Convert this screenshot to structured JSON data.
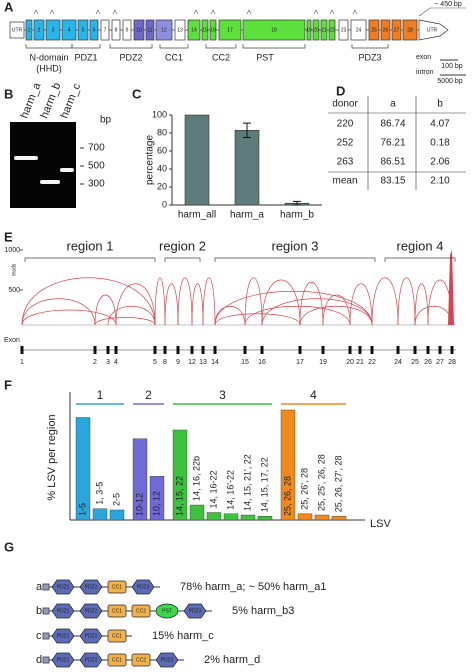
{
  "panel_a": {
    "letter": "A",
    "utr_left": "UTR",
    "exons": [
      "1",
      "2",
      "3",
      "4",
      "5",
      "6",
      "7",
      "8",
      "9",
      "10",
      "11",
      "12",
      "13",
      "14",
      "15",
      "16",
      "17",
      "18",
      "19",
      "20",
      "21",
      "22",
      "23",
      "24",
      "25",
      "26",
      "27",
      "28"
    ],
    "exon_colors": [
      "#29b5e8",
      "#29b5e8",
      "#29b5e8",
      "#29b5e8",
      "#29b5e8",
      "#29b5e8",
      "#ffffff",
      "#ffffff",
      "#ffffff",
      "#6f68c8",
      "#6f68c8",
      "#8a8fe0",
      "#ffffff",
      "#5ee03c",
      "#5ee03c",
      "#5ee03c",
      "#5ee03c",
      "#5ee03c",
      "#5ee03c",
      "#5ee03c",
      "#5ee03c",
      "#5ee03c",
      "#ffffff",
      "#ffffff",
      "#f07d22",
      "#f07d22",
      "#f07d22",
      "#f07d22"
    ],
    "utr_right": "UTR",
    "utr_note": "~ 450 bp",
    "domains": [
      {
        "label": "N-domain",
        "sublabel": "(HHD)"
      },
      {
        "label": "PDZ1"
      },
      {
        "label": "PDZ2"
      },
      {
        "label": "CC1"
      },
      {
        "label": "CC2"
      },
      {
        "label": "PST"
      },
      {
        "label": "PDZ3"
      }
    ],
    "legend": {
      "exon": "exon",
      "intron": "intron",
      "exon_scale": "100 bp",
      "intron_scale": "5000 bp"
    }
  },
  "panel_b": {
    "letter": "B",
    "lanes": [
      "harm_a",
      "harm_b",
      "harm_c"
    ],
    "unit": "bp",
    "markers": [
      700,
      500,
      300
    ]
  },
  "chart_data": [
    {
      "type": "bar",
      "panel": "C",
      "ylabel": "percentage",
      "categories": [
        "harm_all",
        "harm_a",
        "harm_b"
      ],
      "values": [
        100,
        83,
        2
      ],
      "errors": [
        null,
        8,
        2
      ],
      "color": "#5f7a7a",
      "ylim": [
        0,
        100
      ],
      "yticks": [
        0,
        20,
        40,
        60,
        80,
        100
      ]
    },
    {
      "type": "bar",
      "panel": "F",
      "ylabel": "% LSV per region",
      "xlabel": "LSV",
      "ylim": [
        0,
        100
      ],
      "series": [
        {
          "name": "1",
          "color": "#2aa6de",
          "categories": [
            "1-5",
            "1, 3-5",
            "2-5"
          ],
          "values": [
            82,
            9,
            8
          ]
        },
        {
          "name": "2",
          "color": "#6f6ad6",
          "categories": [
            "10-12",
            "10, 12"
          ],
          "values": [
            65,
            35
          ]
        },
        {
          "name": "3",
          "color": "#3cc23c",
          "categories": [
            "14, 15, 22",
            "14, 16, 22b",
            "14, 16-22",
            "14, 16'-22",
            "14, 15, 21', 22",
            "14, 15, 17, 22"
          ],
          "values": [
            72,
            12,
            6,
            5,
            4,
            3
          ]
        },
        {
          "name": "4",
          "color": "#f08a1c",
          "categories": [
            "25, 26, 28",
            "25, 26', 28",
            "25, 25', 26, 28",
            "25, 26, 27', 28"
          ],
          "values": [
            88,
            5,
            4,
            3
          ]
        }
      ]
    }
  ],
  "table_d": {
    "letter": "D",
    "header": [
      "donor",
      "a",
      "b"
    ],
    "rows": [
      [
        "220",
        "86.74",
        "4.07"
      ],
      [
        "252",
        "76.21",
        "0.18"
      ],
      [
        "263",
        "86.51",
        "2.06"
      ],
      [
        "mean",
        "83.15",
        "2.10"
      ]
    ]
  },
  "panel_e": {
    "letter": "E",
    "ylabel": "reads",
    "ylim": [
      0,
      1000
    ],
    "yticks": [
      500,
      1000
    ],
    "track_label": "Exon",
    "exons": [
      "1",
      "2",
      "3",
      "4",
      "5",
      "8",
      "9",
      "12",
      "13",
      "14",
      "15",
      "16",
      "17",
      "19",
      "20",
      "21",
      "22",
      "24",
      "25",
      "26",
      "27",
      "28"
    ],
    "regions": [
      {
        "label": "region 1",
        "color": "#29b5e8"
      },
      {
        "label": "region 2",
        "color": "#6a6ad0"
      },
      {
        "label": "region 3",
        "color": "#3cc83c"
      },
      {
        "label": "region 4",
        "color": "#f07d22"
      }
    ]
  },
  "panel_g": {
    "letter": "G",
    "rows": [
      {
        "letter": "a",
        "label": "78% harm_a; ~ 50% harm_a1",
        "domains": [
          {
            "label": "PDZ1",
            "shape": "hexagon",
            "color": "#5b6bb5"
          },
          {
            "label": "PDZ2",
            "shape": "hexagon",
            "color": "#5b6bb5"
          },
          {
            "label": "CC1",
            "shape": "rounded",
            "color": "#f2b24a"
          },
          {
            "label": "PDZ3",
            "shape": "hexagon",
            "color": "#5b6bb5"
          }
        ]
      },
      {
        "letter": "b",
        "label": "5% harm_b3",
        "domains": [
          {
            "label": "PDZ1",
            "shape": "hexagon",
            "color": "#5b6bb5"
          },
          {
            "label": "PDZ2",
            "shape": "hexagon",
            "color": "#5b6bb5"
          },
          {
            "label": "CC1",
            "shape": "rounded",
            "color": "#f2b24a"
          },
          {
            "label": "CC2",
            "shape": "rounded",
            "color": "#f2b24a"
          },
          {
            "label": "PST",
            "shape": "ellipse",
            "color": "#3ad84a"
          },
          {
            "label": "PDZ3",
            "shape": "hexagon",
            "color": "#5b6bb5"
          }
        ]
      },
      {
        "letter": "c",
        "label": "15% harm_c",
        "domains": [
          {
            "label": "PDZ1",
            "shape": "hexagon",
            "color": "#5b6bb5"
          },
          {
            "label": "PDZ2",
            "shape": "hexagon",
            "color": "#5b6bb5"
          },
          {
            "label": "CC1",
            "shape": "rounded",
            "color": "#f2b24a"
          }
        ]
      },
      {
        "letter": "d",
        "label": "2% harm_d",
        "domains": [
          {
            "label": "PDZ1",
            "shape": "hexagon",
            "color": "#5b6bb5"
          },
          {
            "label": "PDZ2",
            "shape": "hexagon",
            "color": "#5b6bb5"
          },
          {
            "label": "CC1",
            "shape": "rounded",
            "color": "#f2b24a"
          },
          {
            "label": "CC2",
            "shape": "rounded",
            "color": "#f2b24a"
          },
          {
            "label": "PDZ3",
            "shape": "hexagon",
            "color": "#5b6bb5"
          }
        ]
      }
    ]
  }
}
